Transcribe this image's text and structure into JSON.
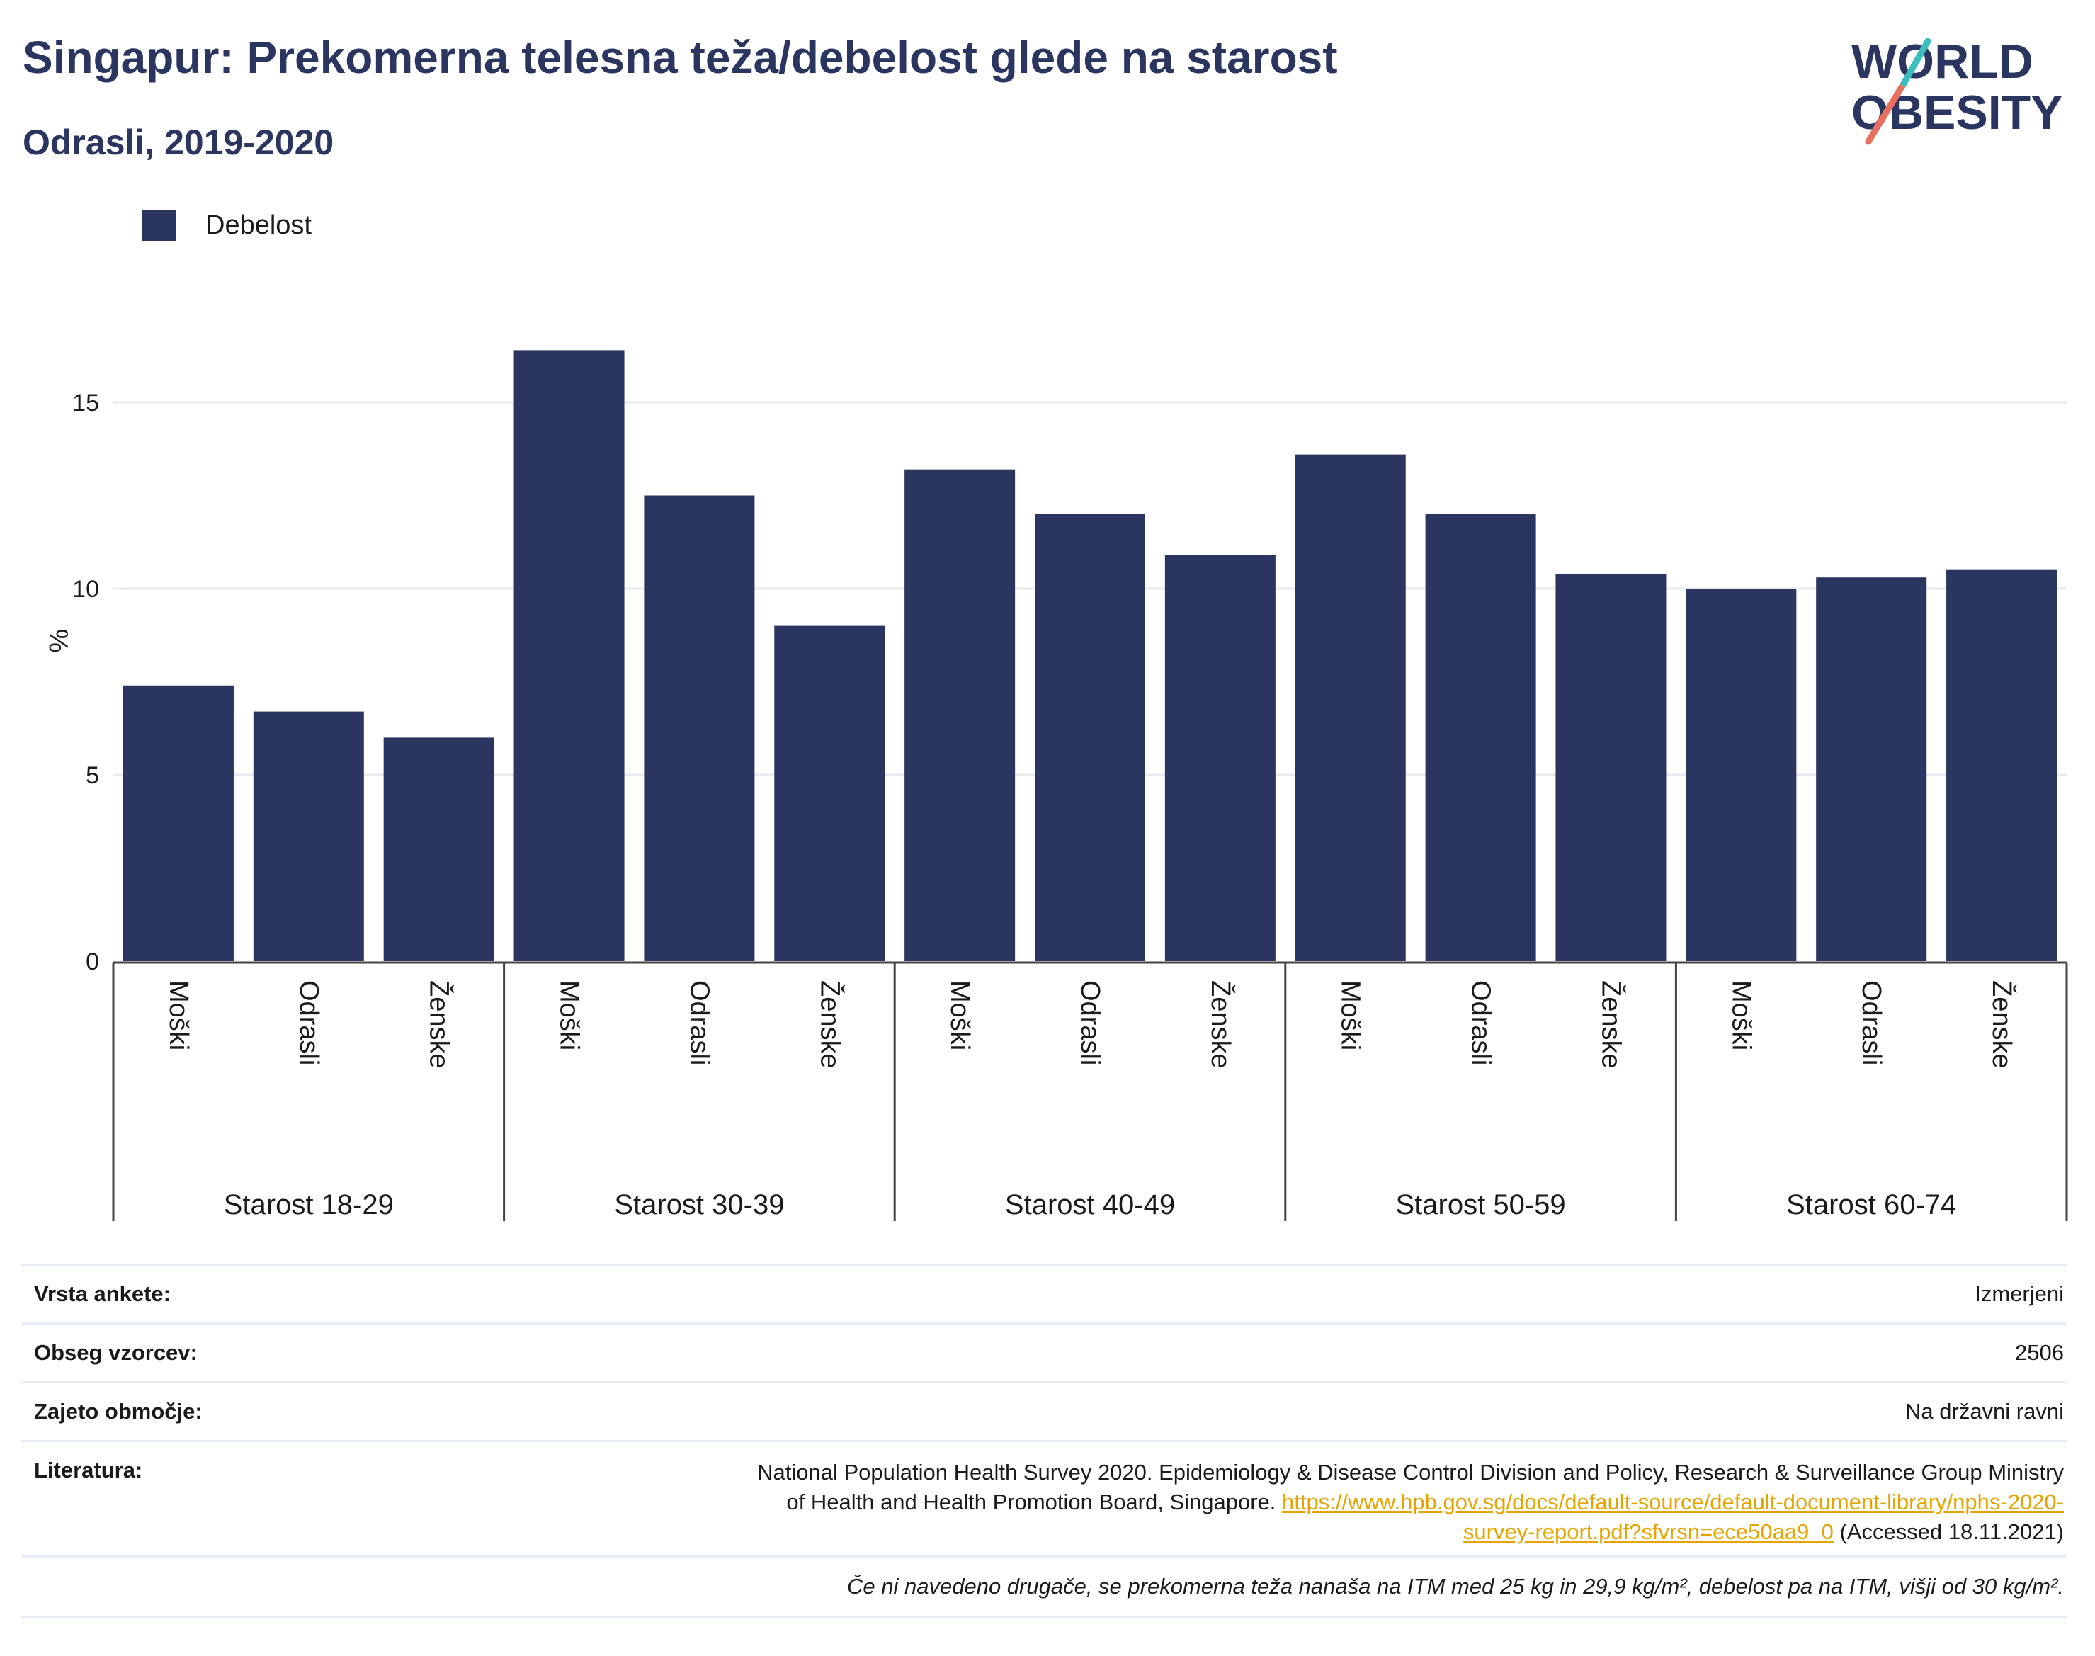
{
  "header": {
    "title": "Singapur: Prekomerna telesna teža/debelost glede na starost",
    "subtitle": "Odrasli, 2019-2020",
    "logo_line1": "WORLD",
    "logo_line2": "OBESITY"
  },
  "legend": {
    "items": [
      {
        "label": "Debelost",
        "color": "#2a3560"
      }
    ]
  },
  "chart_data": {
    "type": "bar",
    "ylabel": "%",
    "ylim": [
      0,
      17
    ],
    "yticks": [
      0,
      5,
      10,
      15
    ],
    "grid": true,
    "legend_position": "top-left",
    "groups": [
      {
        "label": "Starost 18-29",
        "categories": [
          "Moški",
          "Odrasli",
          "Ženske"
        ],
        "values": [
          7.4,
          6.7,
          6.0
        ]
      },
      {
        "label": "Starost 30-39",
        "categories": [
          "Moški",
          "Odrasli",
          "Ženske"
        ],
        "values": [
          16.4,
          12.5,
          9.0
        ]
      },
      {
        "label": "Starost 40-49",
        "categories": [
          "Moški",
          "Odrasli",
          "Ženske"
        ],
        "values": [
          13.2,
          12.0,
          10.9
        ]
      },
      {
        "label": "Starost 50-59",
        "categories": [
          "Moški",
          "Odrasli",
          "Ženske"
        ],
        "values": [
          13.6,
          12.0,
          10.4
        ]
      },
      {
        "label": "Starost 60-74",
        "categories": [
          "Moški",
          "Odrasli",
          "Ženske"
        ],
        "values": [
          10.0,
          10.3,
          10.5
        ]
      }
    ],
    "series": [
      {
        "name": "Debelost",
        "color": "#2a3560"
      }
    ]
  },
  "meta": {
    "survey_type_label": "Vrsta ankete:",
    "survey_type_value": "Izmerjeni",
    "sample_label": "Obseg vzorcev:",
    "sample_value": "2506",
    "area_label": "Zajeto območje:",
    "area_value": "Na državni ravni",
    "lit_label": "Literatura:",
    "lit_text_1": "National Population Health Survey 2020. Epidemiology & Disease Control Division and Policy, Research & Surveillance Group Ministry",
    "lit_text_2": "of Health and Health Promotion Board, Singapore.",
    "lit_link_1": "https://www.hpb.gov.sg/docs/default-source/default-document-library/nphs-2020-",
    "lit_link_2": "survey-report.pdf?sfvrsn=ece50aa9_0",
    "lit_accessed": "(Accessed 18.11.2021)",
    "note": "Če ni navedeno drugače, se prekomerna teža nanaša na ITM med 25 kg in 29,9 kg/m², debelost pa na ITM, višji od 30 kg/m²."
  }
}
